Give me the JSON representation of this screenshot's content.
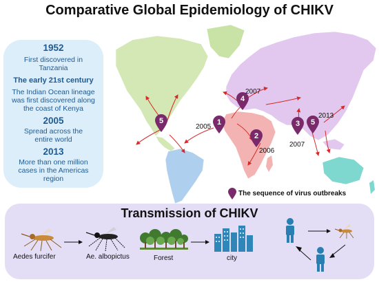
{
  "title": "Comparative Global Epidemiology of CHIKV",
  "timeline": [
    {
      "kind": "year",
      "text": "1952"
    },
    {
      "kind": "desc",
      "text": "First discovered in"
    },
    {
      "kind": "desc",
      "text": "Tanzania"
    },
    {
      "kind": "sub",
      "text": "The early 21st century"
    },
    {
      "kind": "desc",
      "text": "The Indian Ocean lineage"
    },
    {
      "kind": "desc",
      "text": "was first discovered along"
    },
    {
      "kind": "desc",
      "text": "the coast of Kenya"
    },
    {
      "kind": "year",
      "text": "2005"
    },
    {
      "kind": "desc",
      "text": "Spread across the"
    },
    {
      "kind": "desc",
      "text": "entire world"
    },
    {
      "kind": "year",
      "text": "2013"
    },
    {
      "kind": "desc",
      "text": "More than one million"
    },
    {
      "kind": "desc",
      "text": "cases in the Americas"
    },
    {
      "kind": "desc",
      "text": "region"
    }
  ],
  "map": {
    "pins": [
      "1",
      "2",
      "3",
      "4",
      "5",
      "5"
    ],
    "years": [
      "2005",
      "2006",
      "2007",
      "2007",
      "2013"
    ]
  },
  "legend": {
    "text": "The sequence of virus outbreaks",
    "color": "#7a2a6a"
  },
  "transmission": {
    "title": "Transmission of CHIKV",
    "labels": {
      "aedes": "Aedes furcifer",
      "albo": "Ae. albopictus",
      "forest": "Forest",
      "city": "city"
    }
  },
  "colors": {
    "north_america": "#d3e8b4",
    "south_america": "#aecfee",
    "africa": "#f4b3b3",
    "eurasia": "#e2c8ef",
    "australia": "#7fd8d0",
    "greenland": "#c9e3a7",
    "pin": "#7a2a6a",
    "arrow": "#d62a2a",
    "timeline_bg": "#dceefa",
    "transmission_bg": "#e3def6"
  }
}
